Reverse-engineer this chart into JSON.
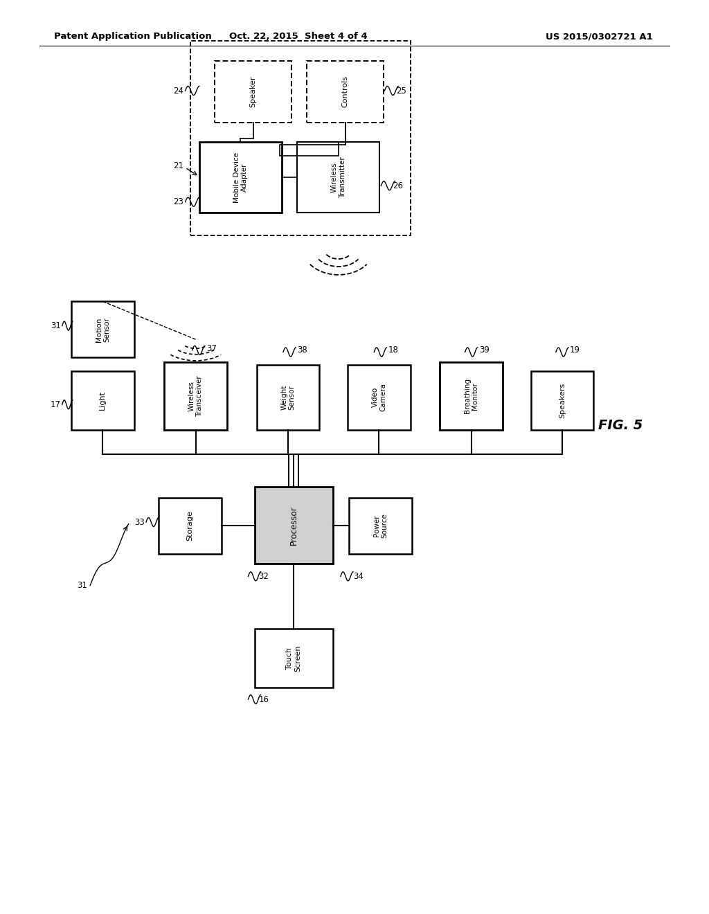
{
  "header_left": "Patent Application Publication",
  "header_mid": "Oct. 22, 2015  Sheet 4 of 4",
  "header_right": "US 2015/0302721 A1",
  "fig_label": "FIG. 5",
  "background": "#ffffff"
}
